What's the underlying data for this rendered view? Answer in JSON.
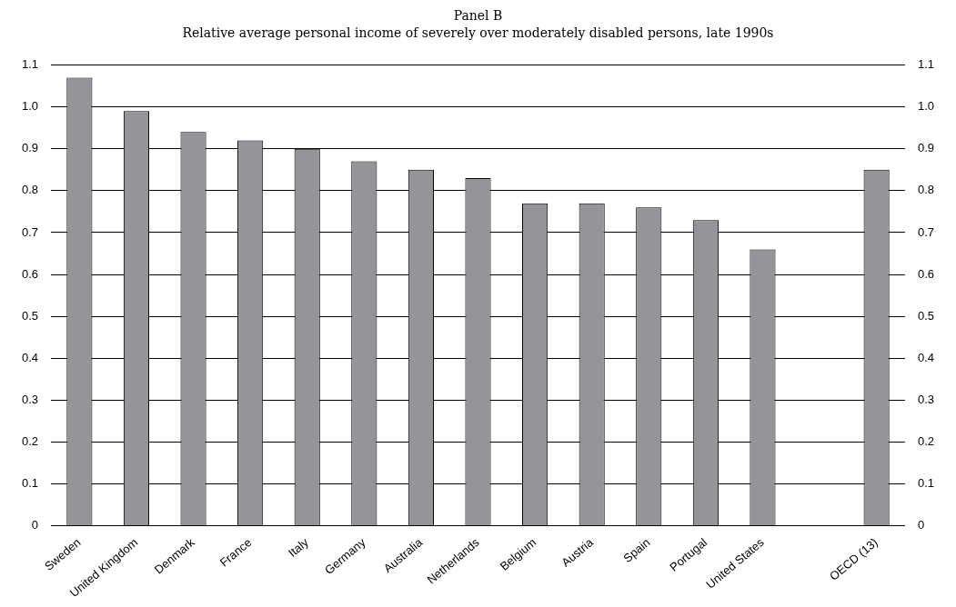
{
  "chart_data": {
    "type": "bar",
    "title": "Panel B",
    "subtitle": "Relative average personal income of severely over moderately disabled persons, late 1990s",
    "categories": [
      "Sweden",
      "United Kingdom",
      "Denmark",
      "France",
      "Italy",
      "Germany",
      "Australia",
      "Netherlands",
      "Belgium",
      "Austria",
      "Spain",
      "Portugal",
      "United States",
      null,
      "OECD (13)"
    ],
    "values": [
      1.07,
      0.99,
      0.94,
      0.92,
      0.9,
      0.87,
      0.85,
      0.83,
      0.77,
      0.77,
      0.76,
      0.73,
      0.66,
      null,
      0.85
    ],
    "color": "#939598",
    "ylim": [
      0,
      1.1
    ],
    "yticks": [
      0,
      0.1,
      0.2,
      0.3,
      0.4,
      0.5,
      0.6,
      0.7,
      0.8,
      0.9,
      {
        "value": 1,
        "label": "1.0"
      },
      1.1
    ],
    "y2lim": [
      0,
      1.1
    ],
    "y2ticks": [
      0,
      0.1,
      0.2,
      0.3,
      0.4,
      0.5,
      0.6,
      0.7,
      0.8,
      0.9,
      {
        "value": 1,
        "label": "1.0"
      },
      1.1
    ],
    "grid": "y",
    "legend": false
  }
}
